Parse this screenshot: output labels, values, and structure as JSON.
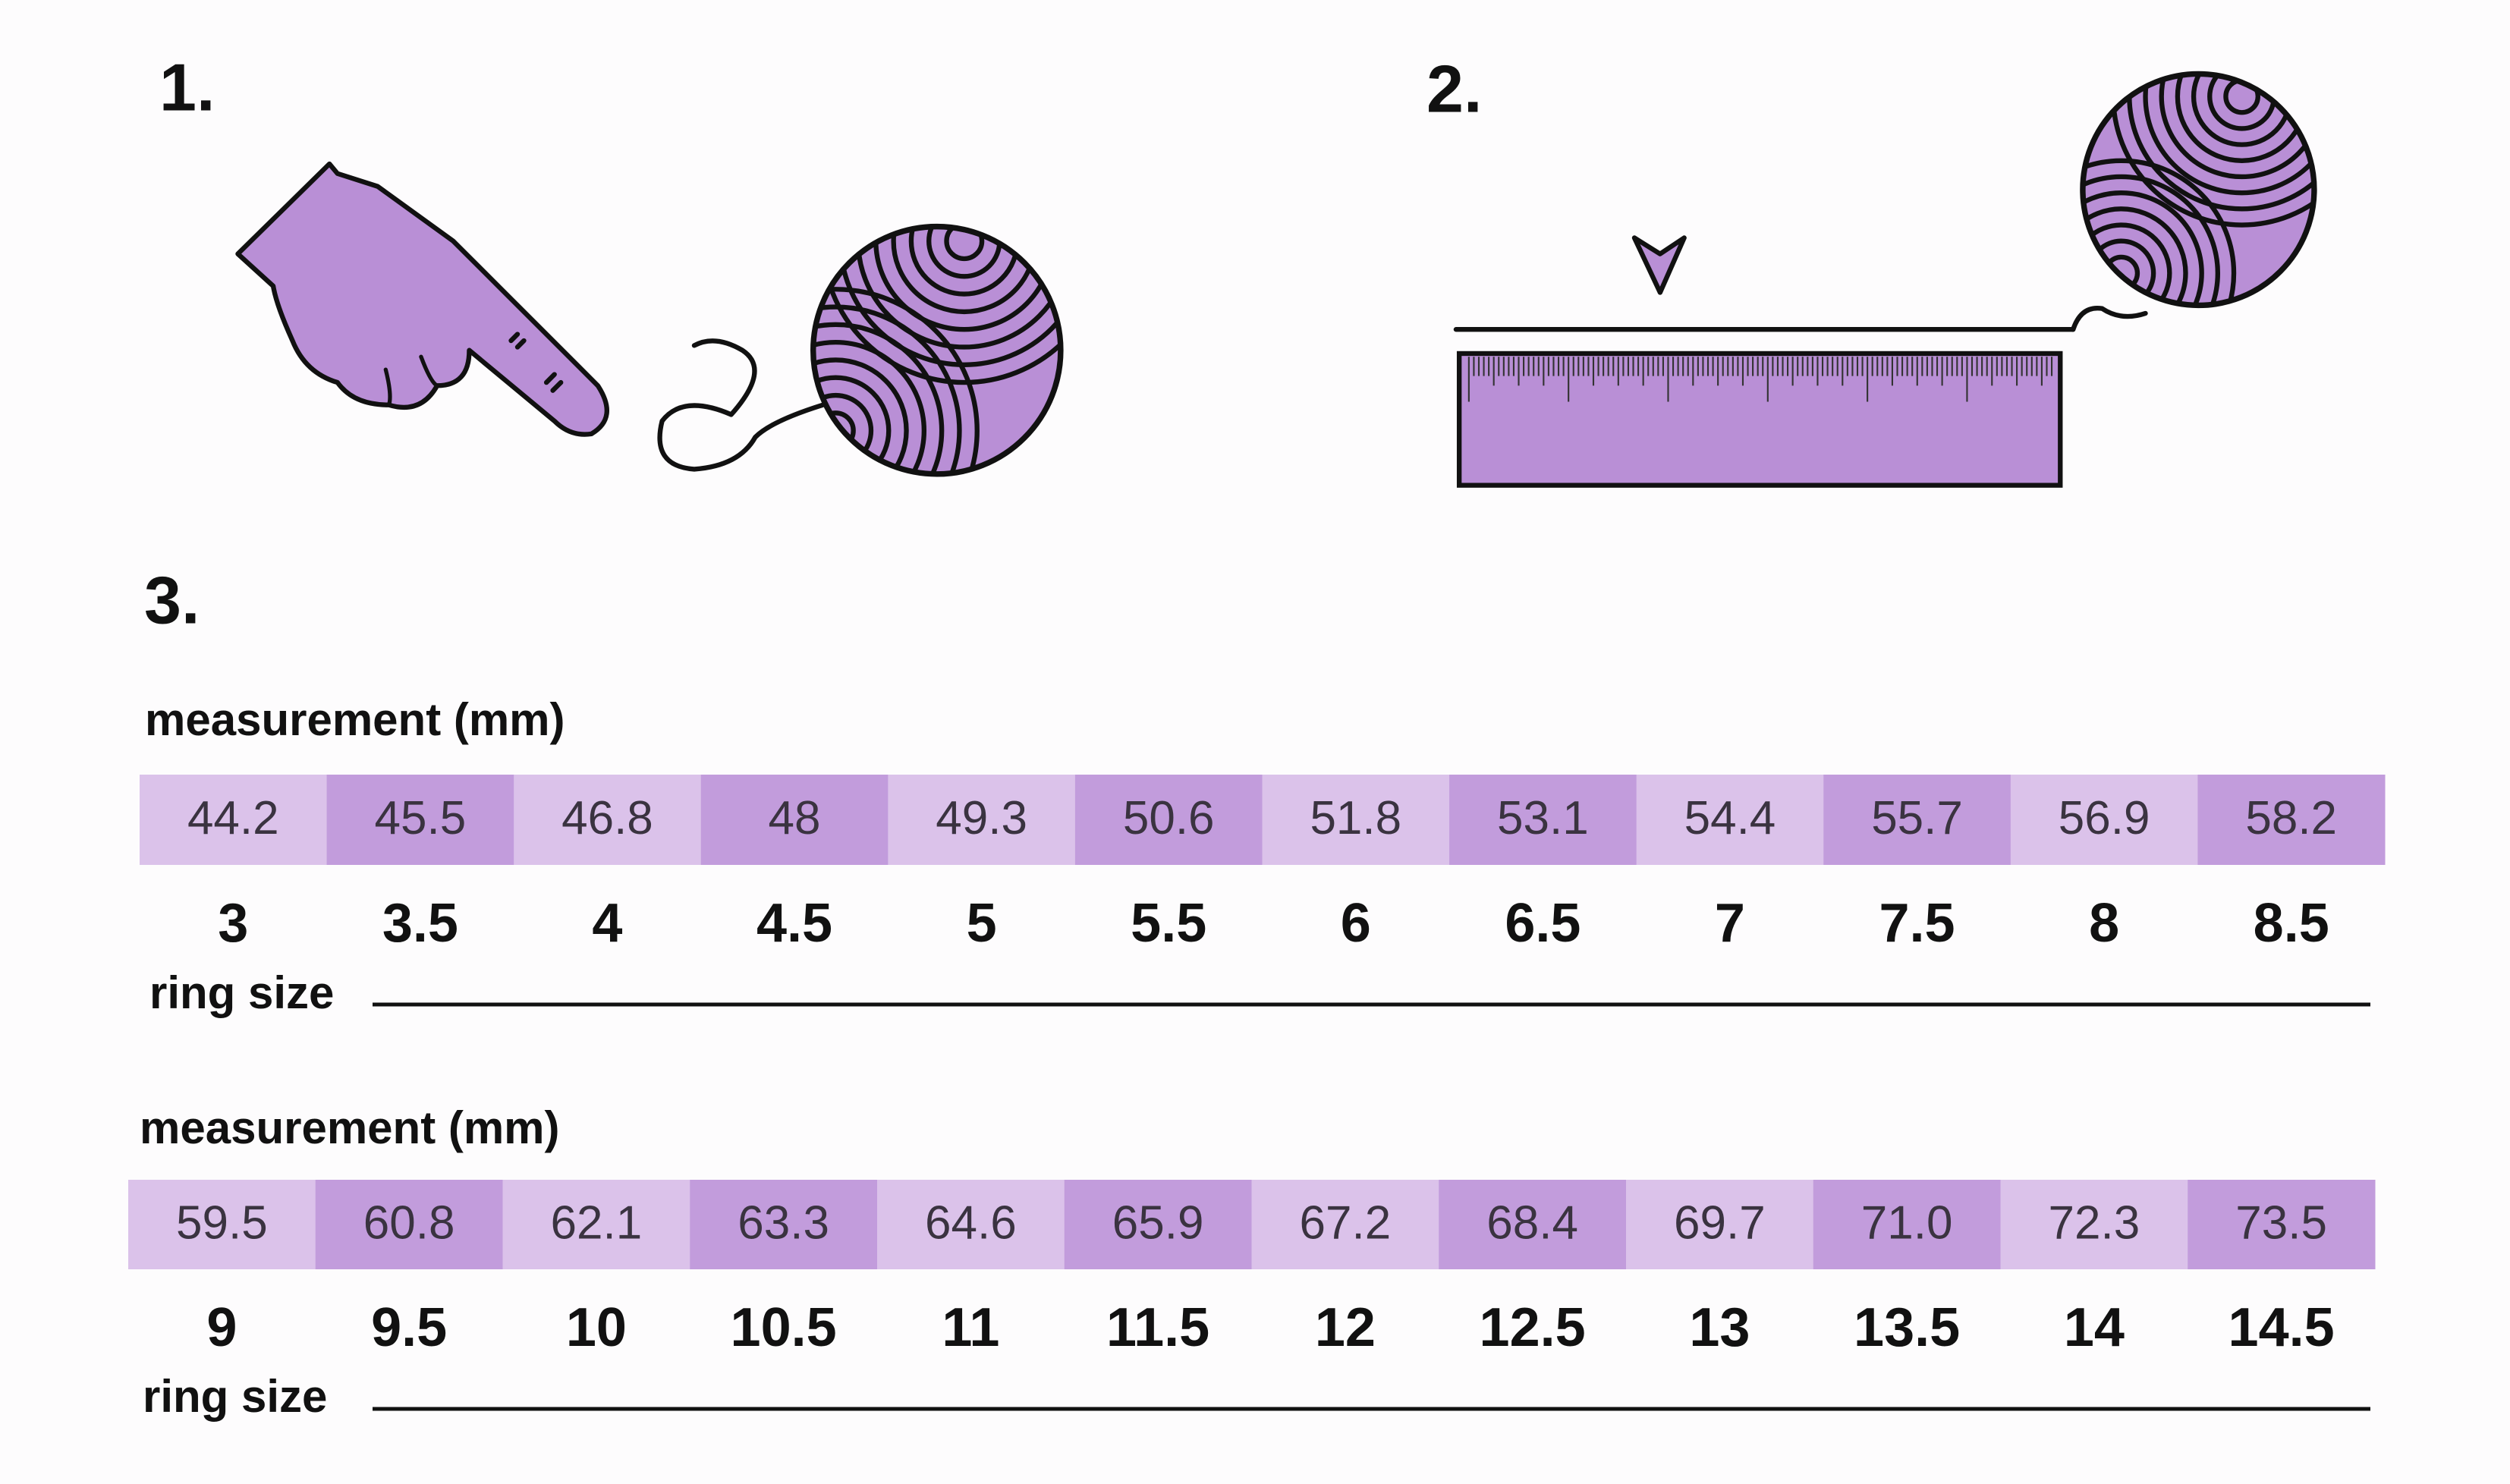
{
  "steps": [
    "1.",
    "2.",
    "3."
  ],
  "tables": [
    {
      "measurement_label": "measurement (mm)",
      "measurements": [
        "44.2",
        "45.5",
        "46.8",
        "48",
        "49.3",
        "50.6",
        "51.8",
        "53.1",
        "54.4",
        "55.7",
        "56.9",
        "58.2"
      ],
      "ring_sizes": [
        "3",
        "3.5",
        "4",
        "4.5",
        "5",
        "5.5",
        "6",
        "6.5",
        "7",
        "7.5",
        "8",
        "8.5"
      ],
      "ring_size_label": "ring size"
    },
    {
      "measurement_label": "measurement (mm)",
      "measurements": [
        "59.5",
        "60.8",
        "62.1",
        "63.3",
        "64.6",
        "65.9",
        "67.2",
        "68.4",
        "69.7",
        "71.0",
        "72.3",
        "73.5"
      ],
      "ring_sizes": [
        "9",
        "9.5",
        "10",
        "10.5",
        "11",
        "11.5",
        "12",
        "12.5",
        "13",
        "13.5",
        "14",
        "14.5"
      ],
      "ring_size_label": "ring size"
    }
  ]
}
